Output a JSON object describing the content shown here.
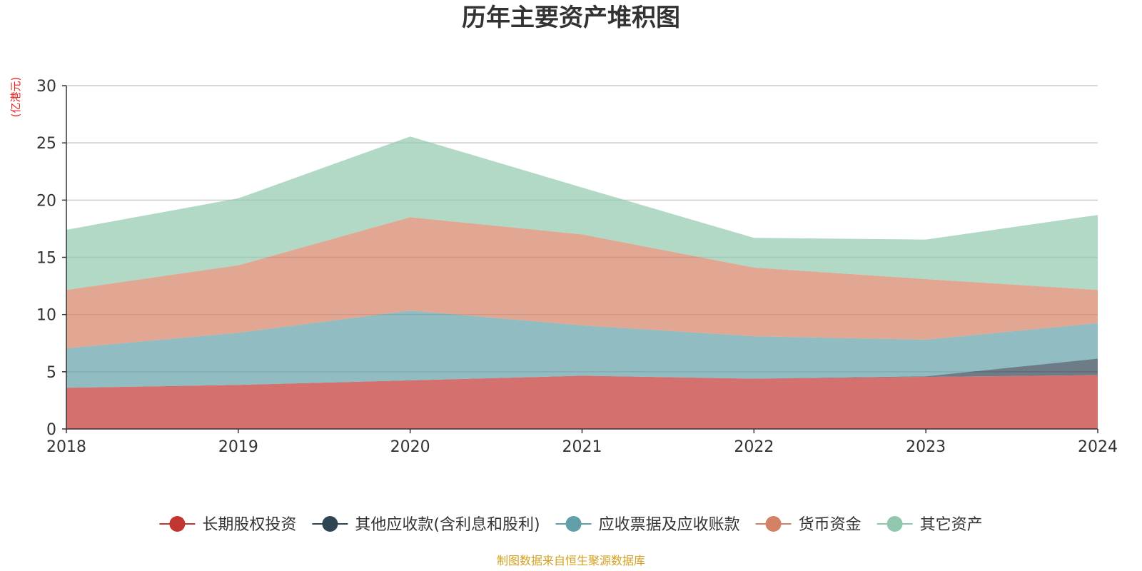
{
  "chart_data": {
    "type": "area",
    "stacked": true,
    "title": "历年主要资产堆积图",
    "unit": "(亿港元)",
    "source": "制图数据来自恒生聚源数据库",
    "x": [
      "2018",
      "2019",
      "2020",
      "2021",
      "2022",
      "2023",
      "2024"
    ],
    "ylim": [
      0,
      30
    ],
    "yticks": [
      0,
      5,
      10,
      15,
      20,
      25,
      30
    ],
    "grid": true,
    "legend_position": "bottom",
    "series": [
      {
        "name": "长期股权投资",
        "color": "#c23531",
        "values": [
          3.6,
          3.85,
          4.25,
          4.65,
          4.4,
          4.55,
          4.7
        ]
      },
      {
        "name": "其他应收款(含利息和股利)",
        "color": "#2f4554",
        "values": [
          0,
          0,
          0,
          0,
          0,
          0.05,
          1.45
        ]
      },
      {
        "name": "应收票据及应收账款",
        "color": "#61a0a8",
        "values": [
          3.45,
          4.55,
          6.1,
          4.4,
          3.7,
          3.2,
          3.1
        ]
      },
      {
        "name": "货币资金",
        "color": "#d48265",
        "values": [
          5.1,
          5.9,
          8.15,
          7.95,
          6.0,
          5.3,
          2.9
        ]
      },
      {
        "name": "其它资产",
        "color": "#91c7ae",
        "values": [
          5.25,
          5.85,
          7.05,
          4.1,
          2.6,
          3.45,
          6.55
        ]
      }
    ]
  }
}
